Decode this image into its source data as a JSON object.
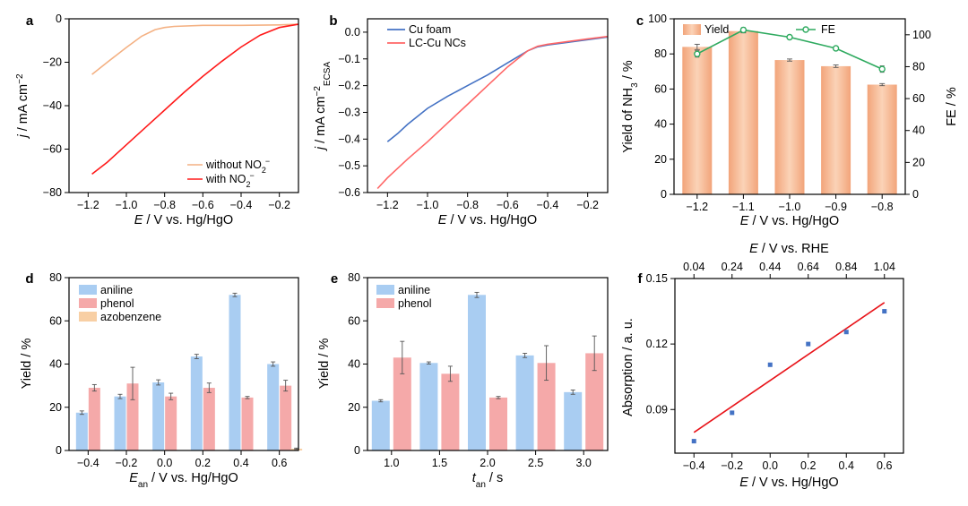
{
  "chart_data": [
    {
      "panel": "a",
      "type": "line",
      "xlabel": {
        "italic": "E",
        "rest": " / V vs. Hg/HgO"
      },
      "ylabel": {
        "italic": "j",
        "rest": " / mA cm",
        "sup": "−2"
      },
      "xlim": [
        -1.3,
        -0.1
      ],
      "ylim": [
        -80,
        0
      ],
      "xticks": [
        -1.2,
        -1.0,
        -0.8,
        -0.6,
        -0.4,
        -0.2
      ],
      "xticklabels": [
        "−1.2",
        "−1.0",
        "−0.8",
        "−0.6",
        "−0.4",
        "−0.2"
      ],
      "yticks": [
        0,
        -20,
        -40,
        -60,
        -80
      ],
      "yticklabels": [
        "0",
        "−20",
        "−40",
        "−60",
        "−80"
      ],
      "legend_position": "bottom-right",
      "series": [
        {
          "name": "without NO2−",
          "legend": {
            "text": "without NO",
            "sub": "2",
            "sup": "−"
          },
          "color": "#f4b183",
          "x": [
            -1.18,
            -1.1,
            -1.0,
            -0.92,
            -0.85,
            -0.8,
            -0.75,
            -0.6,
            -0.4,
            -0.2,
            -0.1
          ],
          "y": [
            -25.6,
            -20,
            -13.2,
            -8,
            -5,
            -4,
            -3.5,
            -3,
            -3,
            -2.8,
            -2.5
          ]
        },
        {
          "name": "with NO2−",
          "legend": {
            "text": "with NO",
            "sub": "2",
            "sup": "−"
          },
          "color": "#ff1a1a",
          "x": [
            -1.18,
            -1.1,
            -1.0,
            -0.9,
            -0.8,
            -0.7,
            -0.6,
            -0.5,
            -0.4,
            -0.3,
            -0.2,
            -0.1
          ],
          "y": [
            -71.5,
            -66,
            -58,
            -50,
            -42,
            -34,
            -26.5,
            -19.5,
            -13,
            -7.5,
            -4,
            -2.5
          ]
        }
      ]
    },
    {
      "panel": "b",
      "type": "line",
      "xlabel": {
        "italic": "E",
        "rest": " / V vs. Hg/HgO"
      },
      "ylabel": {
        "italic": "j",
        "rest": " / mA cm",
        "sup": "−2",
        "sub": "ECSA"
      },
      "xlim": [
        -1.3,
        -0.1
      ],
      "ylim": [
        -0.6,
        0.05
      ],
      "xticks": [
        -1.2,
        -1.0,
        -0.8,
        -0.6,
        -0.4,
        -0.2
      ],
      "xticklabels": [
        "−1.2",
        "−1.0",
        "−0.8",
        "−0.6",
        "−0.4",
        "−0.2"
      ],
      "yticks": [
        0.0,
        -0.1,
        -0.2,
        -0.3,
        -0.4,
        -0.5,
        -0.6
      ],
      "yticklabels": [
        "0.0",
        "−0.1",
        "−0.2",
        "−0.3",
        "−0.4",
        "−0.5",
        "−0.6"
      ],
      "legend_position": "top-left",
      "series": [
        {
          "name": "Cu foam",
          "color": "#4472c4",
          "x": [
            -1.2,
            -1.15,
            -1.1,
            -1.0,
            -0.9,
            -0.8,
            -0.7,
            -0.6,
            -0.5,
            -0.45,
            -0.4,
            -0.3,
            -0.2,
            -0.1
          ],
          "y": [
            -0.41,
            -0.38,
            -0.345,
            -0.285,
            -0.24,
            -0.2,
            -0.16,
            -0.115,
            -0.07,
            -0.055,
            -0.048,
            -0.038,
            -0.028,
            -0.018
          ]
        },
        {
          "name": "LC-Cu NCs",
          "color": "#ff6666",
          "x": [
            -1.25,
            -1.2,
            -1.1,
            -1.0,
            -0.9,
            -0.8,
            -0.7,
            -0.6,
            -0.5,
            -0.45,
            -0.4,
            -0.3,
            -0.2,
            -0.1
          ],
          "y": [
            -0.585,
            -0.545,
            -0.475,
            -0.41,
            -0.34,
            -0.27,
            -0.2,
            -0.13,
            -0.07,
            -0.053,
            -0.045,
            -0.035,
            -0.025,
            -0.016
          ]
        }
      ]
    },
    {
      "panel": "c",
      "type": "bar",
      "xlabel": {
        "italic": "E",
        "rest": " / V vs. Hg/HgO"
      },
      "ylabel": {
        "text": "Yield of NH",
        "sub": "3",
        "rest": " / %"
      },
      "y2label": {
        "text": "FE / %"
      },
      "categories": [
        "−1.2",
        "−1.1",
        "−1.0",
        "−0.9",
        "−0.8"
      ],
      "ylim": [
        0,
        100
      ],
      "yticks": [
        0,
        20,
        40,
        60,
        80,
        100
      ],
      "y2lim": [
        0,
        110
      ],
      "y2ticks": [
        0,
        20,
        40,
        60,
        80,
        100
      ],
      "legend_position": "top",
      "series": [
        {
          "name": "Yield",
          "color": "#f4b183",
          "values": [
            84,
            93,
            76.5,
            73,
            62.5
          ],
          "errors": [
            1.5,
            1.0,
            0.6,
            0.7,
            0.6
          ]
        },
        {
          "name": "FE",
          "axis": "right",
          "color": "#2eaa5f",
          "values": [
            88,
            103,
            98.5,
            91.5,
            78.5
          ],
          "errors": [
            2,
            1.5,
            1,
            1,
            2
          ]
        }
      ]
    },
    {
      "panel": "d",
      "type": "bar",
      "xlabel": {
        "italic": "E",
        "sub": "an",
        "rest": " / V vs. Hg/HgO"
      },
      "ylabel": {
        "text": "Yield / %"
      },
      "categories": [
        "−0.4",
        "−0.2",
        "0.0",
        "0.2",
        "0.4",
        "0.6"
      ],
      "ylim": [
        0,
        80
      ],
      "yticks": [
        0,
        20,
        40,
        60,
        80
      ],
      "legend_position": "top-left",
      "series": [
        {
          "name": "aniline",
          "color": "#a9cdf2",
          "values": [
            17.5,
            25,
            31.5,
            43.5,
            72,
            40
          ],
          "errors": [
            0.8,
            1,
            1.2,
            1,
            0.8,
            1
          ]
        },
        {
          "name": "phenol",
          "color": "#f5a9a9",
          "values": [
            29,
            31,
            25,
            29,
            24.5,
            30
          ],
          "errors": [
            1.5,
            7.5,
            1.5,
            2.2,
            0.5,
            2.5
          ]
        },
        {
          "name": "azobenzene",
          "color": "#f8cfa4",
          "values": [
            0,
            0,
            0,
            0,
            0,
            0.8
          ],
          "errors": [
            0,
            0,
            0,
            0,
            0,
            0.3
          ]
        }
      ]
    },
    {
      "panel": "e",
      "type": "bar",
      "xlabel": {
        "italic": "t",
        "sub": "an",
        "rest": " / s"
      },
      "ylabel": {
        "text": "Yield / %"
      },
      "categories": [
        "1.0",
        "1.5",
        "2.0",
        "2.5",
        "3.0"
      ],
      "ylim": [
        0,
        80
      ],
      "yticks": [
        0,
        20,
        40,
        60,
        80
      ],
      "legend_position": "top-left",
      "series": [
        {
          "name": "aniline",
          "color": "#a9cdf2",
          "values": [
            23,
            40.5,
            72,
            44,
            27
          ],
          "errors": [
            0.5,
            0.5,
            1.2,
            1,
            1
          ]
        },
        {
          "name": "phenol",
          "color": "#f5a9a9",
          "values": [
            43,
            35.5,
            24.5,
            40.5,
            45
          ],
          "errors": [
            7.5,
            3.5,
            0.5,
            8,
            8
          ]
        }
      ]
    },
    {
      "panel": "f",
      "type": "scatter",
      "xlabel": {
        "italic": "E",
        "rest": " / V vs. Hg/HgO"
      },
      "x2label": {
        "italic": "E",
        "rest": " / V vs. RHE"
      },
      "ylabel": {
        "text": "Absorption / a. u."
      },
      "xlim": [
        -0.5,
        0.7
      ],
      "ylim": [
        0.07,
        0.15
      ],
      "xticks": [
        -0.4,
        -0.2,
        0.0,
        0.2,
        0.4,
        0.6
      ],
      "xticklabels": [
        "−0.4",
        "−0.2",
        "0.0",
        "0.2",
        "0.4",
        "0.6"
      ],
      "x2ticklabels": [
        "0.04",
        "0.24",
        "0.44",
        "0.64",
        "0.84",
        "1.04"
      ],
      "yticks": [
        0.09,
        0.12,
        0.15
      ],
      "yticklabels": [
        "0.09",
        "0.12",
        "0.15"
      ],
      "points": {
        "color": "#4472c4",
        "x": [
          -0.4,
          -0.2,
          0.0,
          0.2,
          0.4,
          0.6
        ],
        "y": [
          0.0755,
          0.0885,
          0.1105,
          0.12,
          0.1255,
          0.135
        ]
      },
      "fit": {
        "color": "#e8141a",
        "x": [
          -0.4,
          0.6
        ],
        "y": [
          0.0795,
          0.139
        ]
      }
    }
  ]
}
